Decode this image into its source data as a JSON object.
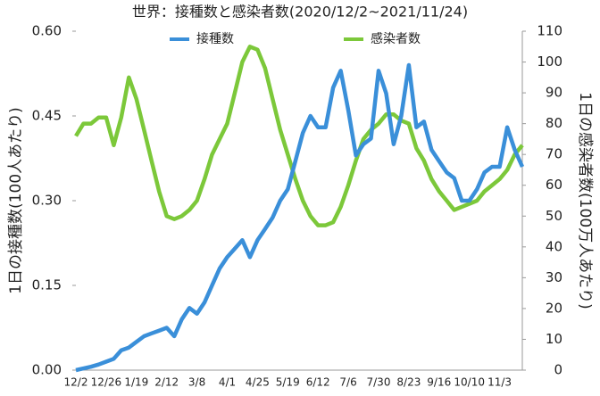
{
  "chart_data": {
    "type": "line",
    "title": "世界：接種数と感染者数(2020/12/2~2021/11/24)",
    "y_label": "1日の接種数(100人あたり)",
    "y2_label": "1日の感染者数(100万人あたり)",
    "categories": [
      "12/2",
      null,
      null,
      null,
      "12/26",
      null,
      null,
      null,
      "1/19",
      null,
      null,
      null,
      "2/12",
      null,
      null,
      null,
      "3/8",
      null,
      null,
      null,
      "4/1",
      null,
      null,
      null,
      "4/25",
      null,
      null,
      null,
      "5/19",
      null,
      null,
      null,
      "6/12",
      null,
      null,
      null,
      "7/6",
      null,
      null,
      null,
      "7/30",
      null,
      null,
      null,
      "8/23",
      null,
      null,
      null,
      "9/16",
      null,
      null,
      null,
      "10/10",
      null,
      null,
      null,
      "11/3",
      null,
      null,
      null
    ],
    "series": [
      {
        "name": "接種数",
        "color": "#3a8fd9",
        "axis": "y",
        "values": [
          0.0,
          0.003,
          0.006,
          0.01,
          0.015,
          0.02,
          0.035,
          0.04,
          0.05,
          0.06,
          0.065,
          0.07,
          0.075,
          0.06,
          0.09,
          0.11,
          0.1,
          0.12,
          0.15,
          0.18,
          0.2,
          0.215,
          0.23,
          0.2,
          0.23,
          0.25,
          0.27,
          0.3,
          0.32,
          0.37,
          0.42,
          0.45,
          0.43,
          0.43,
          0.5,
          0.53,
          0.46,
          0.38,
          0.4,
          0.41,
          0.53,
          0.49,
          0.4,
          0.45,
          0.54,
          0.43,
          0.44,
          0.39,
          0.37,
          0.35,
          0.34,
          0.3,
          0.3,
          0.32,
          0.35,
          0.36,
          0.36,
          0.43,
          0.39,
          0.36
        ]
      },
      {
        "name": "感染者数",
        "color": "#7cc83a",
        "axis": "y2",
        "values": [
          76,
          80,
          80,
          82,
          82,
          73,
          82,
          95,
          88,
          78,
          68,
          58,
          50,
          49,
          50,
          52,
          55,
          62,
          70,
          75,
          80,
          90,
          100,
          105,
          104,
          98,
          88,
          78,
          70,
          62,
          55,
          50,
          47,
          47,
          48,
          53,
          60,
          68,
          75,
          78,
          80,
          83,
          83,
          81,
          80,
          72,
          68,
          62,
          58,
          55,
          52,
          53,
          54,
          55,
          58,
          60,
          62,
          65,
          70,
          73
        ]
      }
    ],
    "ylim": [
      0,
      0.6
    ],
    "yticks": [
      {
        "value": 0,
        "label": "0.00"
      },
      {
        "value": 0.15,
        "label": "0.15"
      },
      {
        "value": 0.3,
        "label": "0.30"
      },
      {
        "value": 0.45,
        "label": "0.45"
      },
      {
        "value": 0.6,
        "label": "0.60"
      }
    ],
    "y2lim": [
      0,
      110
    ],
    "y2ticks": [
      0,
      10,
      20,
      30,
      40,
      50,
      60,
      70,
      80,
      90,
      100,
      110
    ],
    "grid": false
  }
}
